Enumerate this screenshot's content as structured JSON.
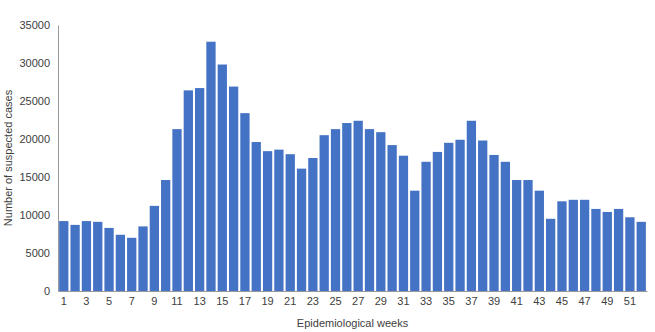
{
  "chart_data": {
    "type": "bar",
    "x_label": "Epidemiological weeks",
    "y_label": "Number of suspected cases",
    "categories": [
      "1",
      null,
      "3",
      null,
      "5",
      null,
      "7",
      null,
      "9",
      null,
      "11",
      null,
      "13",
      null,
      "15",
      null,
      "17",
      null,
      "19",
      null,
      "21",
      null,
      "23",
      null,
      "25",
      null,
      "27",
      null,
      "29",
      null,
      "31",
      null,
      "33",
      null,
      "35",
      null,
      "37",
      null,
      "39",
      null,
      "41",
      null,
      "43",
      null,
      "45",
      null,
      "47",
      null,
      "49",
      null,
      "51",
      null
    ],
    "values": [
      9200,
      8700,
      9200,
      9100,
      8300,
      7400,
      7000,
      8500,
      11200,
      14600,
      21300,
      26400,
      26700,
      32800,
      29800,
      26900,
      23400,
      19600,
      18400,
      18600,
      18000,
      16100,
      17500,
      20500,
      21300,
      22100,
      22400,
      21300,
      20900,
      19200,
      17800,
      13200,
      17000,
      18300,
      19500,
      19900,
      22400,
      19800,
      17900,
      17000,
      14600,
      14600,
      13200,
      9500,
      11800,
      12000,
      12000,
      10800,
      10400,
      10800,
      9700,
      9100
    ],
    "color": "#4472c4",
    "ylim": [
      0,
      35000
    ],
    "yticks": [
      0,
      5000,
      10000,
      15000,
      20000,
      25000,
      30000,
      35000
    ],
    "grid": false
  }
}
